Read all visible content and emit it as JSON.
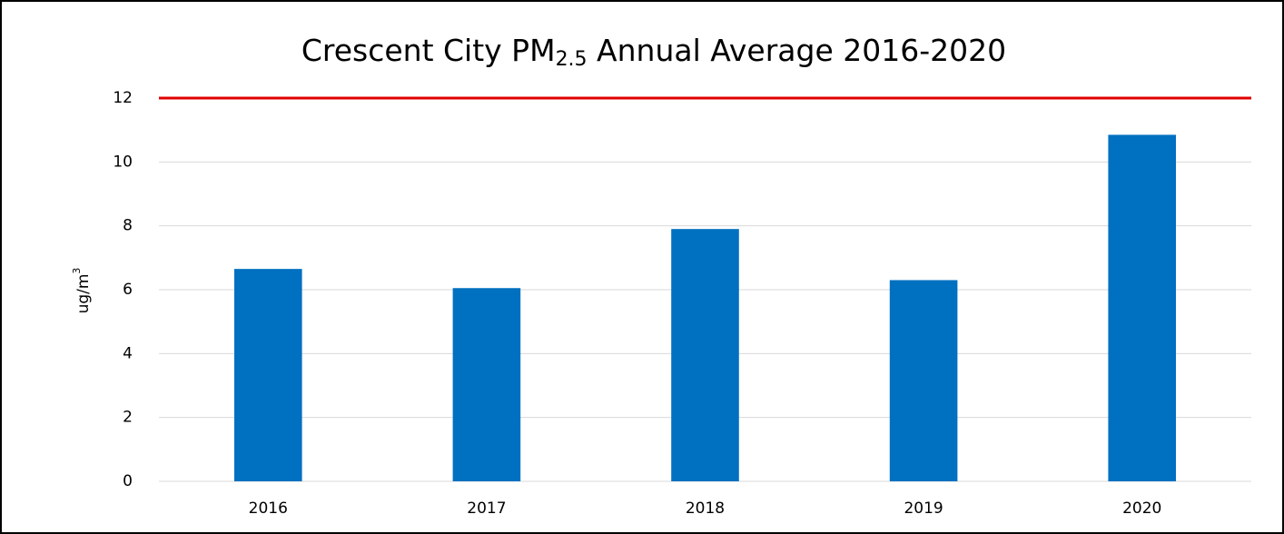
{
  "chart_data": {
    "type": "bar",
    "title": {
      "text": "Crescent City PM",
      "subscript": "2.5",
      "rest": " Annual Average 2016-2020"
    },
    "y_label": {
      "text": "ug/m",
      "superscript": "3"
    },
    "categories": [
      "2016",
      "2017",
      "2018",
      "2019",
      "2020"
    ],
    "values": [
      6.65,
      6.05,
      7.9,
      6.3,
      10.85
    ],
    "color": "#0070c0",
    "ylim": [
      0,
      12
    ],
    "yticks": [
      0,
      2,
      4,
      6,
      8,
      10,
      12
    ],
    "grid": true,
    "reference_line": {
      "value": 12,
      "color": "#e00000"
    }
  }
}
